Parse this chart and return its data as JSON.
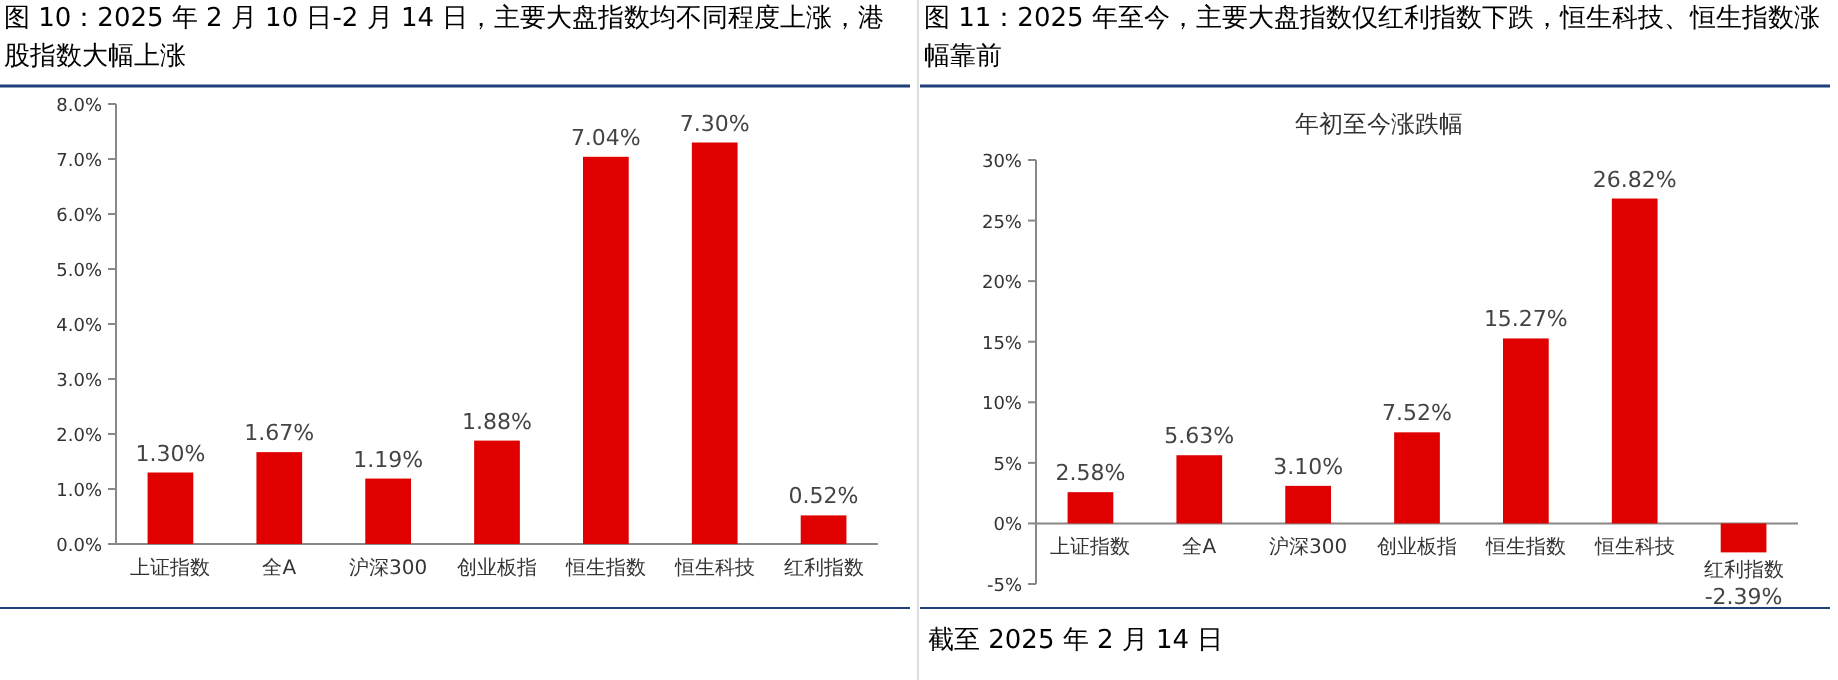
{
  "chart_data": [
    {
      "type": "bar",
      "title": "图 10：2025 年 2 月 10 日-2 月 14 日，主要大盘指数均不同程度上涨，港股指数大幅上涨",
      "categories": [
        "上证指数",
        "全A",
        "沪深300",
        "创业板指",
        "恒生指数",
        "恒生科技",
        "红利指数"
      ],
      "values": [
        1.3,
        1.67,
        1.19,
        1.88,
        7.04,
        7.3,
        0.52
      ],
      "value_labels": [
        "1.30%",
        "1.67%",
        "1.19%",
        "1.88%",
        "7.04%",
        "7.30%",
        "0.52%"
      ],
      "color": "#e00000",
      "ylim": [
        0,
        8
      ],
      "yticks": [
        {
          "value": 0,
          "label": "0.0%"
        },
        {
          "value": 1,
          "label": "1.0%"
        },
        {
          "value": 2,
          "label": "2.0%"
        },
        {
          "value": 3,
          "label": "3.0%"
        },
        {
          "value": 4,
          "label": "4.0%"
        },
        {
          "value": 5,
          "label": "5.0%"
        },
        {
          "value": 6,
          "label": "6.0%"
        },
        {
          "value": 7,
          "label": "7.0%"
        },
        {
          "value": 8,
          "label": "8.0%"
        }
      ]
    },
    {
      "type": "bar",
      "title": "图 11：2025 年至今，主要大盘指数仅红利指数下跌，恒生科技、恒生指数涨幅靠前",
      "subtitle": "年初至今涨跌幅",
      "categories": [
        "上证指数",
        "全A",
        "沪深300",
        "创业板指",
        "恒生指数",
        "恒生科技",
        "红利指数"
      ],
      "values": [
        2.58,
        5.63,
        3.1,
        7.52,
        15.27,
        26.82,
        -2.39
      ],
      "value_labels": [
        "2.58%",
        "5.63%",
        "3.10%",
        "7.52%",
        "15.27%",
        "26.82%",
        "-2.39%"
      ],
      "color": "#e00000",
      "ylim": [
        -5,
        30
      ],
      "yticks": [
        {
          "value": -5,
          "label": "-5%"
        },
        {
          "value": 0,
          "label": "0%"
        },
        {
          "value": 5,
          "label": "5%"
        },
        {
          "value": 10,
          "label": "10%"
        },
        {
          "value": 15,
          "label": "15%"
        },
        {
          "value": 20,
          "label": "20%"
        },
        {
          "value": 25,
          "label": "25%"
        },
        {
          "value": 30,
          "label": "30%"
        }
      ],
      "annotations": [
        "截至 2025 年 2 月 14 日"
      ]
    }
  ]
}
